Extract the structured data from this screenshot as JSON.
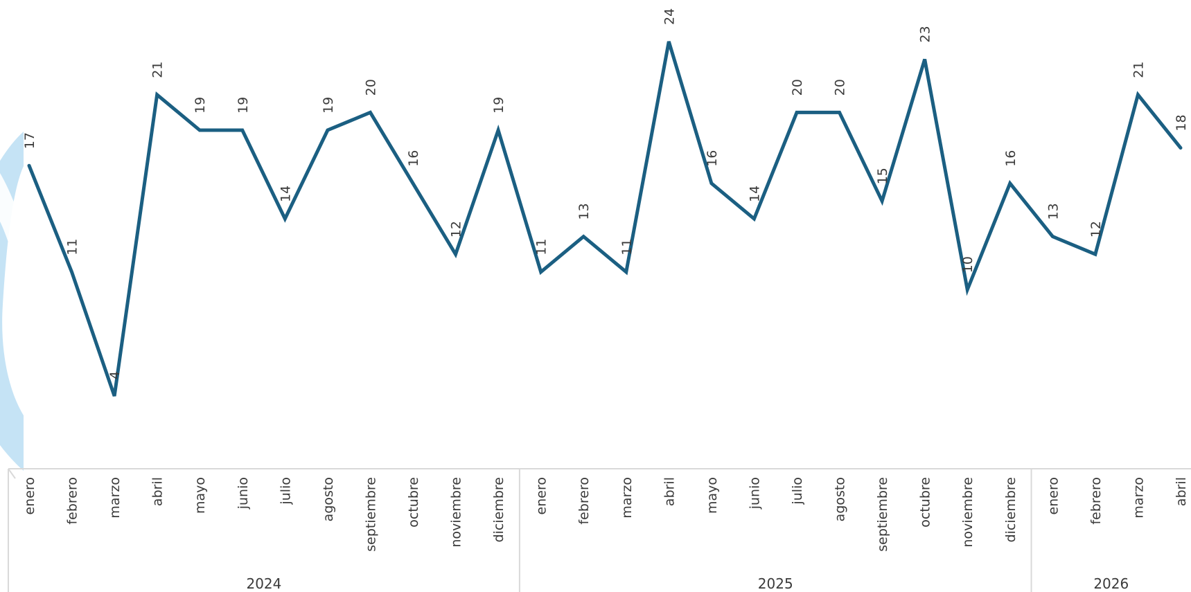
{
  "colors": {
    "line": "#1b5f82",
    "background_shape": "#bfe0f4",
    "axis": "#d9d9d9",
    "text": "#3a3a3a"
  },
  "chart_data": {
    "type": "line",
    "title": "",
    "xlabel": "",
    "ylabel": "",
    "ylim": [
      4,
      24
    ],
    "grid": false,
    "legend": "none",
    "x_level1": [
      "enero",
      "febrero",
      "marzo",
      "abril",
      "mayo",
      "junio",
      "julio",
      "agosto",
      "septiembre",
      "octubre",
      "noviembre",
      "diciembre",
      "enero",
      "febrero",
      "marzo",
      "abril",
      "mayo",
      "junio",
      "julio",
      "agosto",
      "septiembre",
      "octubre",
      "noviembre",
      "diciembre",
      "enero",
      "febrero",
      "marzo",
      "abril"
    ],
    "x_level2": [
      {
        "label": "2024",
        "count": 12
      },
      {
        "label": "2025",
        "count": 12
      },
      {
        "label": "2026",
        "count": 4
      }
    ],
    "series": [
      {
        "values": [
          17,
          11,
          4,
          21,
          19,
          19,
          14,
          19,
          20,
          16,
          12,
          19,
          11,
          13,
          11,
          24,
          16,
          14,
          20,
          20,
          15,
          23,
          10,
          16,
          13,
          12,
          21,
          18
        ]
      }
    ]
  }
}
